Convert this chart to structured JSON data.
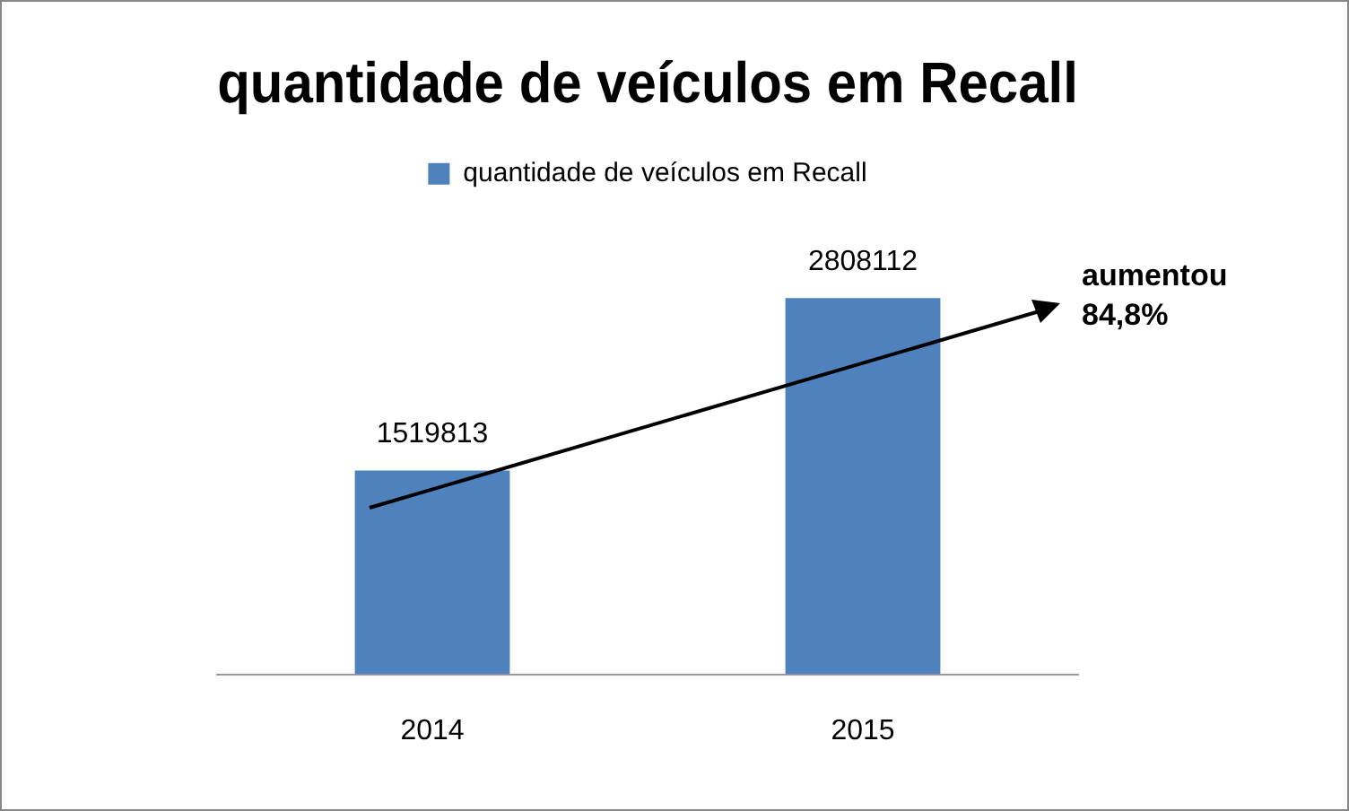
{
  "chart_data": {
    "type": "bar",
    "title": "quantidade de veículos em Recall",
    "categories": [
      "2014",
      "2015"
    ],
    "series": [
      {
        "name": "quantidade de veículos em Recall",
        "color": "#4f81bd",
        "values": [
          1519813,
          2808112
        ]
      }
    ],
    "data_labels": true,
    "legend": "top",
    "grid": false,
    "annotations": [
      "aumentou 84,8%"
    ]
  }
}
